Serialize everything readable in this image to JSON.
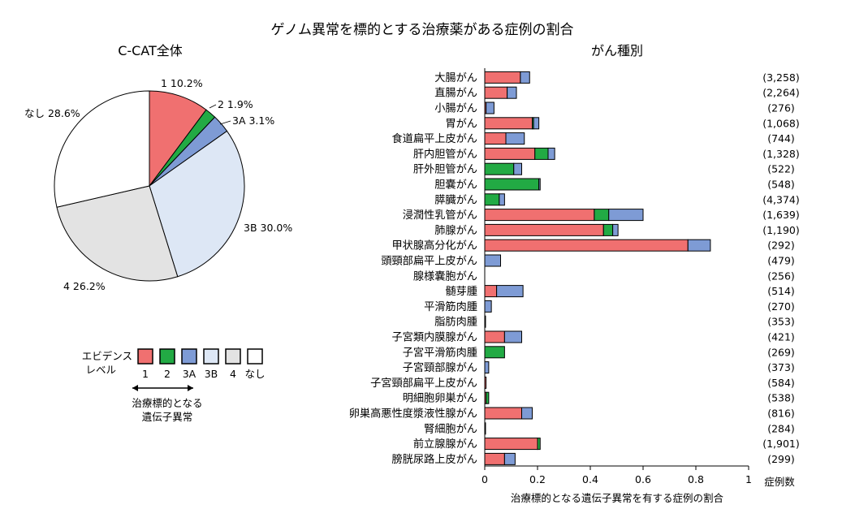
{
  "title": "ゲノム異常を標的とする治療薬がある症例の割合",
  "colors": {
    "level_1": "#f07070",
    "level_2": "#22aa44",
    "level_3A": "#7e9bd5",
    "level_3B": "#dde7f5",
    "level_4": "#e3e3e3",
    "level_none": "#ffffff"
  },
  "chart_data": [
    {
      "type": "pie",
      "title": "C-CAT全体",
      "slices": [
        {
          "key": "level_1",
          "label": "1",
          "value": 10.2,
          "display": "1 10.2%"
        },
        {
          "key": "level_2",
          "label": "2",
          "value": 1.9,
          "display": "2 1.9%"
        },
        {
          "key": "level_3A",
          "label": "3A",
          "value": 3.1,
          "display": "3A 3.1%"
        },
        {
          "key": "level_3B",
          "label": "3B",
          "value": 30.0,
          "display": "3B 30.0%"
        },
        {
          "key": "level_4",
          "label": "4",
          "value": 26.2,
          "display": "4 26.2%"
        },
        {
          "key": "level_none",
          "label": "なし",
          "value": 28.6,
          "display": "なし 28.6%"
        }
      ]
    },
    {
      "type": "bar",
      "orientation": "horizontal",
      "stacked": true,
      "title": "がん種別",
      "xlabel": "治療標的となる遺伝子異常を有する症例の割合",
      "count_header": "症例数",
      "xlim": [
        0,
        1
      ],
      "xticks": [
        "0",
        "0.2",
        "0.4",
        "0.6",
        "0.8",
        "1"
      ],
      "categories": [
        "大腸がん",
        "直腸がん",
        "小腸がん",
        "胃がん",
        "食道扁平上皮がん",
        "肝内胆管がん",
        "肝外胆管がん",
        "胆嚢がん",
        "膵臓がん",
        "浸潤性乳管がん",
        "肺腺がん",
        "甲状腺高分化がん",
        "頭頸部扁平上皮がん",
        "腺様嚢胞がん",
        "髄芽腫",
        "平滑筋肉腫",
        "脂肪肉腫",
        "子宮類内膜腺がん",
        "子宮平滑筋肉腫",
        "子宮頸部腺がん",
        "子宮頸部扁平上皮がん",
        "明細胞卵巣がん",
        "卵巣高悪性度漿液性腺がん",
        "腎細胞がん",
        "前立腺腺がん",
        "膀胱尿路上皮がん"
      ],
      "counts": [
        "(3,258)",
        "(2,264)",
        "(276)",
        "(1,068)",
        "(744)",
        "(1,328)",
        "(522)",
        "(548)",
        "(4,374)",
        "(1,639)",
        "(1,190)",
        "(292)",
        "(479)",
        "(256)",
        "(514)",
        "(270)",
        "(353)",
        "(421)",
        "(269)",
        "(373)",
        "(584)",
        "(538)",
        "(816)",
        "(284)",
        "(1,901)",
        "(299)"
      ],
      "series": [
        {
          "key": "level_1",
          "name": "1",
          "values": [
            0.135,
            0.085,
            0.005,
            0.18,
            0.08,
            0.19,
            0.0,
            0.0,
            0.0,
            0.415,
            0.45,
            0.77,
            0.0,
            0.0,
            0.045,
            0.0,
            0.0,
            0.075,
            0.0,
            0.0,
            0.005,
            0.005,
            0.14,
            0.0,
            0.2,
            0.075
          ]
        },
        {
          "key": "level_2",
          "name": "2",
          "values": [
            0.0,
            0.0,
            0.0,
            0.005,
            0.0,
            0.05,
            0.11,
            0.205,
            0.055,
            0.055,
            0.035,
            0.0,
            0.0,
            0.0,
            0.0,
            0.0,
            0.0,
            0.0,
            0.075,
            0.0,
            0.0,
            0.01,
            0.0,
            0.0,
            0.01,
            0.0
          ]
        },
        {
          "key": "level_3A",
          "name": "3A",
          "values": [
            0.035,
            0.035,
            0.03,
            0.02,
            0.07,
            0.025,
            0.03,
            0.005,
            0.02,
            0.13,
            0.02,
            0.085,
            0.06,
            0.0,
            0.1,
            0.025,
            0.003,
            0.065,
            0.0,
            0.015,
            0.0,
            0.0,
            0.04,
            0.003,
            0.0,
            0.04
          ]
        }
      ]
    }
  ],
  "legend": {
    "title_line1": "エビデンス",
    "title_line2": "レベル",
    "items": [
      {
        "key": "level_1",
        "label": "1"
      },
      {
        "key": "level_2",
        "label": "2"
      },
      {
        "key": "level_3A",
        "label": "3A"
      },
      {
        "key": "level_3B",
        "label": "3B"
      },
      {
        "key": "level_4",
        "label": "4"
      },
      {
        "key": "level_none",
        "label": "なし"
      }
    ],
    "arrow_caption_line1": "治療標的となる",
    "arrow_caption_line2": "遺伝子異常"
  }
}
